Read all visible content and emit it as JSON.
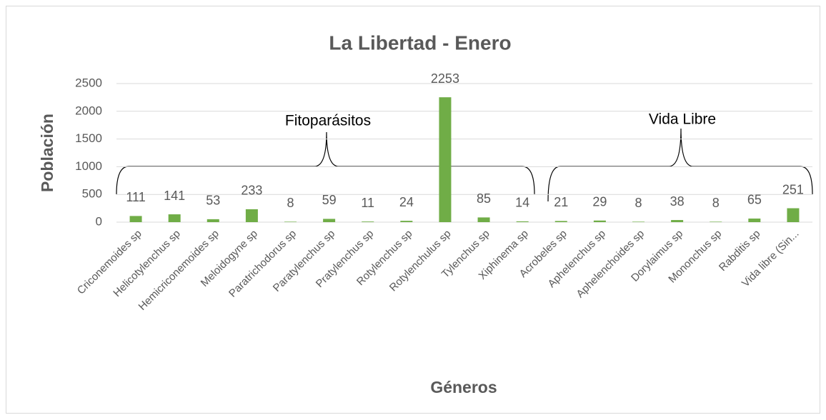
{
  "chart_data": {
    "type": "bar",
    "title": "La Libertad - Enero",
    "x_label": "Géneros",
    "y_label": "Población",
    "annotations": [
      "Fitoparásitos",
      "Vida Libre"
    ],
    "categories": [
      "Criconemoides sp",
      "Helicotylenchus sp",
      "Hemicriconemoides sp",
      "Meloidogyne sp",
      "Paratrichodorus sp",
      "Paratylenchus sp",
      "Pratylenchus sp",
      "Rotylenchus sp",
      "Rotylenchulus sp",
      "Tylenchus sp",
      "Xiphinema sp",
      "Acrobeles sp",
      "Aphelenchus sp",
      "Aphelenchoides sp",
      "Dorylaimus sp",
      "Mononchus sp",
      "Rabditis sp",
      "Vida libre (Sin..."
    ],
    "values": [
      111,
      141,
      53,
      233,
      8,
      59,
      11,
      24,
      2253,
      85,
      14,
      21,
      29,
      8,
      38,
      8,
      65,
      251
    ],
    "color": "#70ad47",
    "ylim": [
      0,
      2500
    ],
    "yticks": [
      0,
      500,
      1000,
      1500,
      2000,
      2500
    ],
    "grid": true
  }
}
